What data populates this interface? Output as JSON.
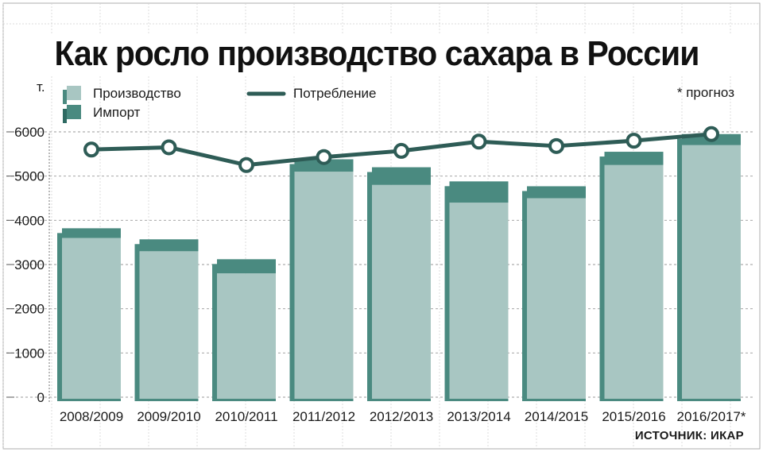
{
  "title": "Как росло производство сахара в России",
  "unit": "т.",
  "footnote": "* прогноз",
  "source": "ИСТОЧНИК: ИКАР",
  "colors": {
    "production": "#a8c6c2",
    "import": "#4a8a80",
    "consumption_line": "#2e5c56",
    "grid": "#9a9a9a"
  },
  "legend": {
    "production": "Производство",
    "import": "Импорт",
    "consumption": "Потребление"
  },
  "chart_data": {
    "type": "bar",
    "stacked": true,
    "categories": [
      "2008/2009",
      "2009/2010",
      "2010/2011",
      "2011/2012",
      "2012/2013",
      "2013/2014",
      "2014/2015",
      "2015/2016",
      "2016/2017*"
    ],
    "series": [
      {
        "name": "Производство",
        "kind": "bar",
        "values": [
          3600,
          3300,
          2800,
          5100,
          4800,
          4400,
          4500,
          5250,
          5700
        ]
      },
      {
        "name": "Импорт",
        "kind": "bar",
        "values": [
          220,
          270,
          320,
          280,
          400,
          480,
          270,
          300,
          250
        ]
      },
      {
        "name": "Потребление",
        "kind": "line",
        "values": [
          5600,
          5650,
          5250,
          5430,
          5570,
          5780,
          5680,
          5800,
          5950
        ]
      }
    ],
    "y_ticks": [
      0,
      1000,
      2000,
      3000,
      4000,
      5000,
      6000
    ],
    "ylim": [
      0,
      6000
    ],
    "grid": true,
    "legend_position": "top-left"
  }
}
